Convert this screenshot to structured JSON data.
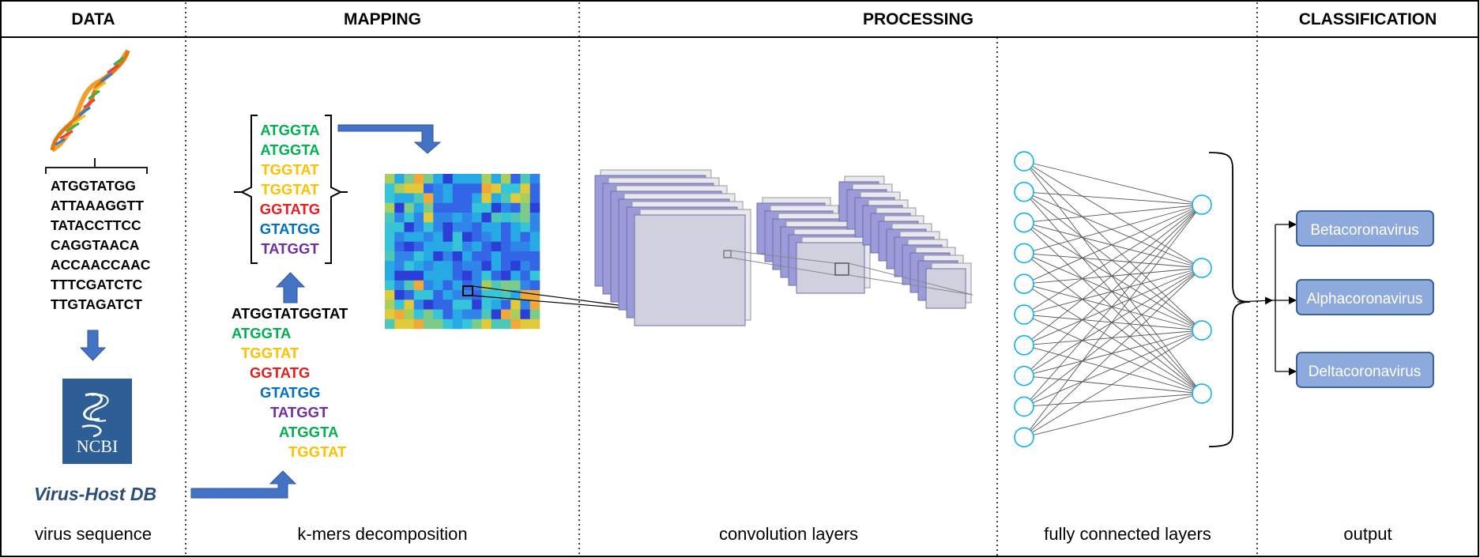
{
  "headers": [
    "DATA",
    "MAPPING",
    "PROCESSING",
    "CLASSIFICATION"
  ],
  "captions": {
    "data": "virus sequence",
    "mapping": "k-mers decomposition",
    "conv": "convolution layers",
    "fc": "fully connected layers",
    "output": "output"
  },
  "sequence_lines": [
    "ATGGTATGG",
    "ATTAAAGGTT",
    "TATACCTTCC",
    "CAGGTAACA",
    "ACCAACCAAC",
    "TTTCGATCTC",
    "TTGTAGATCT"
  ],
  "ncbi": {
    "label": "NCBI"
  },
  "virus_host_db": "Virus-Host DB",
  "kmer_bracket": [
    {
      "text": "ATGGTA",
      "color": "#00b050"
    },
    {
      "text": "ATGGTA",
      "color": "#00b050"
    },
    {
      "text": "TGGTAT",
      "color": "#ffc000"
    },
    {
      "text": "TGGTAT",
      "color": "#ffc000"
    },
    {
      "text": "GGTATG",
      "color": "#e81e1e"
    },
    {
      "text": "GTATGG",
      "color": "#0070c0"
    },
    {
      "text": "TATGGT",
      "color": "#7030a0"
    }
  ],
  "kmer_source": "ATGGTATGGTAT",
  "kmer_decomposition": [
    {
      "text": "ATGGTA",
      "color": "#00b050"
    },
    {
      "text": "TGGTAT",
      "color": "#ffc000"
    },
    {
      "text": "GGTATG",
      "color": "#e81e1e"
    },
    {
      "text": "GTATGG",
      "color": "#0070c0"
    },
    {
      "text": "TATGGT",
      "color": "#7030a0"
    },
    {
      "text": "ATGGTA",
      "color": "#00b050"
    },
    {
      "text": "TGGTAT",
      "color": "#ffc000"
    }
  ],
  "classes": [
    "Betacoronavirus",
    "Alphacoronavirus",
    "Deltacoronavirus"
  ],
  "colors": {
    "arrow": "#4472c4",
    "class_box": "#8ea9db",
    "class_border": "#2f5597",
    "layer_fill": "#9a9bd8",
    "layer_front": "#d9d9e6",
    "neuron": "#00b0f0"
  },
  "icons": [
    "dna-helix-icon",
    "ncbi-logo-icon"
  ]
}
